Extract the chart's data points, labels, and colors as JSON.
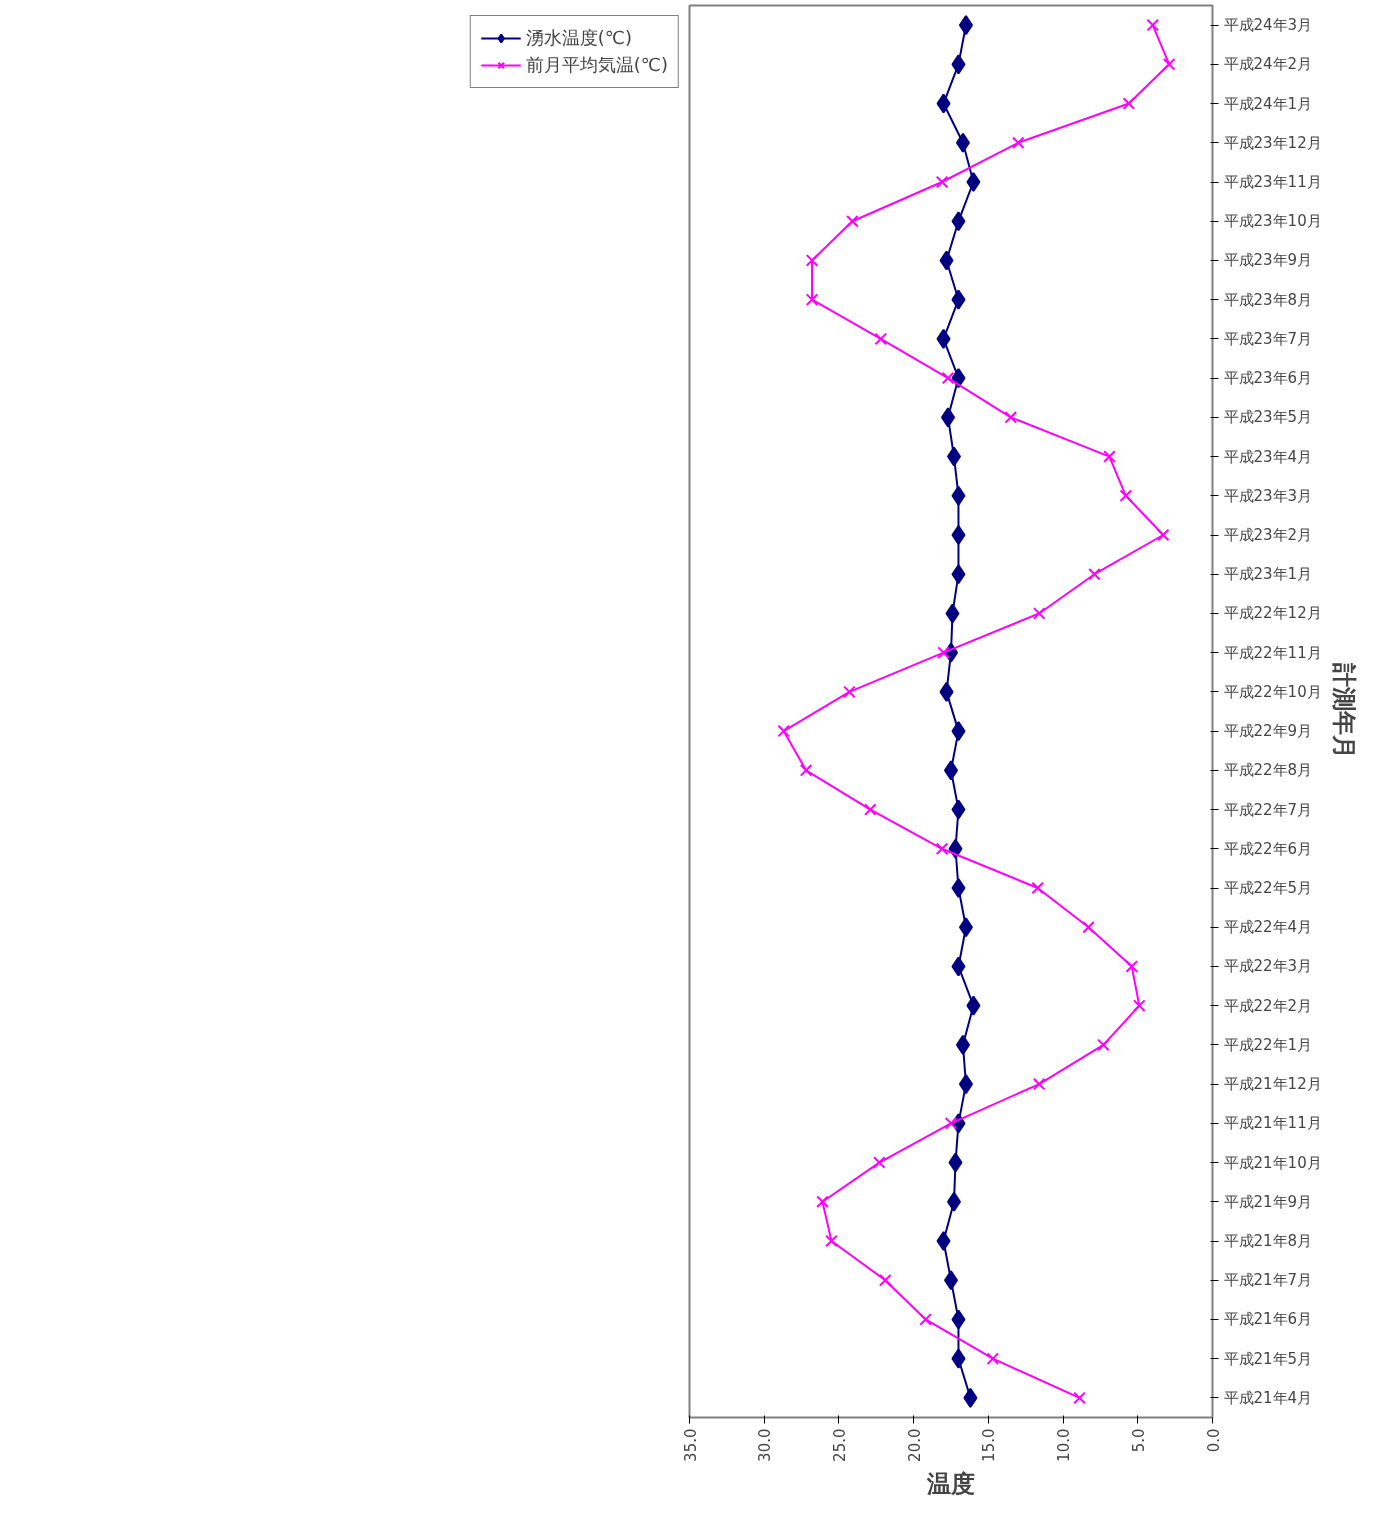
{
  "chart_data": {
    "type": "line",
    "orientation": "horizontal",
    "xlabel": "温度",
    "ylabel": "計測年月",
    "categories": [
      "平成24年3月",
      "平成24年2月",
      "平成24年1月",
      "平成23年12月",
      "平成23年11月",
      "平成23年10月",
      "平成23年9月",
      "平成23年8月",
      "平成23年7月",
      "平成23年6月",
      "平成23年5月",
      "平成23年4月",
      "平成23年3月",
      "平成23年2月",
      "平成23年1月",
      "平成22年12月",
      "平成22年11月",
      "平成22年10月",
      "平成22年9月",
      "平成22年8月",
      "平成22年7月",
      "平成22年6月",
      "平成22年5月",
      "平成22年4月",
      "平成22年3月",
      "平成22年2月",
      "平成22年1月",
      "平成21年12月",
      "平成21年11月",
      "平成21年10月",
      "平成21年9月",
      "平成21年8月",
      "平成21年7月",
      "平成21年6月",
      "平成21年5月",
      "平成21年4月"
    ],
    "series": [
      {
        "name": "湧水温度(℃)",
        "color": "#000080",
        "marker": "diamond",
        "values": [
          16.5,
          17.0,
          18.0,
          16.7,
          16.0,
          17.0,
          17.8,
          17.0,
          18.0,
          17.0,
          17.7,
          17.3,
          17.0,
          17.0,
          17.0,
          17.4,
          17.5,
          17.8,
          17.0,
          17.5,
          17.0,
          17.2,
          17.0,
          16.5,
          17.0,
          16.0,
          16.7,
          16.5,
          17.0,
          17.2,
          17.3,
          18.0,
          17.5,
          17.0,
          17.0,
          16.2
        ]
      },
      {
        "name": "前月平均気温(℃)",
        "color": "#ff00ff",
        "marker": "cross",
        "values": [
          4.0,
          2.9,
          5.6,
          13.0,
          18.1,
          24.1,
          26.8,
          26.8,
          22.2,
          17.7,
          13.5,
          6.9,
          5.8,
          3.3,
          7.9,
          11.6,
          18.0,
          24.3,
          28.7,
          27.2,
          22.9,
          18.1,
          11.7,
          8.3,
          5.4,
          4.9,
          7.3,
          11.6,
          17.5,
          22.3,
          26.1,
          25.5,
          21.9,
          19.2,
          14.7,
          8.9
        ]
      }
    ],
    "xlim": [
      35,
      0
    ],
    "xticks": [
      {
        "value": 35,
        "label": "35.0"
      },
      {
        "value": 30,
        "label": "30.0"
      },
      {
        "value": 25,
        "label": "25.0"
      },
      {
        "value": 20,
        "label": "20.0"
      },
      {
        "value": 15,
        "label": "15.0"
      },
      {
        "value": 10,
        "label": "10.0"
      },
      {
        "value": 5,
        "label": "5.0"
      },
      {
        "value": 0,
        "label": "0.0"
      }
    ],
    "grid": false,
    "legend": "left"
  }
}
